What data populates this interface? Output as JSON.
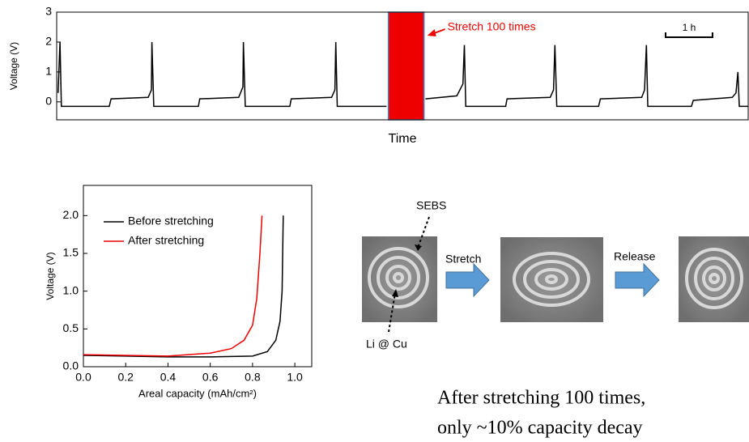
{
  "chart_data": [
    {
      "type": "line",
      "ylabel": "Voltage (V)",
      "xlabel": "Time",
      "color": "#000000",
      "x": [
        0.03,
        0.07,
        0.1,
        1.12,
        1.16,
        1.95,
        2.02,
        2.03,
        2.07,
        3.02,
        3.05,
        3.88,
        3.97,
        3.98,
        4.02,
        4.97,
        5.0,
        5.86,
        5.93,
        5.95,
        5.98,
        7.03,
        7.45,
        7.86,
        8.53,
        8.66,
        8.69,
        8.72,
        9.57,
        9.6,
        10.52,
        10.59,
        10.62,
        10.66,
        11.55,
        11.59,
        12.47,
        12.53,
        12.57,
        12.6,
        13.53,
        13.57,
        14.4,
        14.48,
        14.52,
        14.55,
        14.74
      ],
      "values": [
        0.3,
        2.0,
        -0.15,
        -0.15,
        0.1,
        0.15,
        0.4,
        2.0,
        -0.15,
        -0.15,
        0.1,
        0.15,
        0.5,
        2.0,
        -0.15,
        -0.15,
        0.1,
        0.15,
        0.4,
        2.0,
        -0.15,
        -0.15,
        null,
        0.1,
        0.2,
        0.6,
        1.9,
        -0.15,
        -0.15,
        0.1,
        0.15,
        0.4,
        1.9,
        -0.15,
        -0.15,
        0.1,
        0.15,
        0.4,
        1.9,
        -0.15,
        -0.15,
        0.05,
        0.15,
        0.3,
        1.0,
        -0.15,
        -0.15
      ],
      "xlim": [
        0,
        14.74
      ],
      "ylim": [
        -0.6,
        3
      ],
      "yticks": [
        0,
        1,
        2,
        3
      ],
      "highlight": {
        "x": [
          7.07,
          7.83
        ],
        "color": "#ee0000",
        "label": "Stretch 100 times"
      },
      "scale_bar": {
        "length": 1,
        "label": "1 h"
      }
    },
    {
      "type": "line",
      "xlabel": "Areal capacity (mAh/cm²)",
      "ylabel": "Voltage (V)",
      "legend": "upper left",
      "xlim": [
        0,
        1.08
      ],
      "ylim": [
        0,
        2.4
      ],
      "xticks": [
        {
          "value": 0,
          "label": "0.0"
        },
        {
          "value": 0.2,
          "label": "0.2"
        },
        {
          "value": 0.4,
          "label": "0.4"
        },
        {
          "value": 0.6,
          "label": "0.6"
        },
        {
          "value": 0.8,
          "label": "0.8"
        },
        {
          "value": 1.0,
          "label": "1.0"
        }
      ],
      "yticks": [
        {
          "value": 0,
          "label": "0.0"
        },
        {
          "value": 0.5,
          "label": "0.5"
        },
        {
          "value": 1.0,
          "label": "1.0"
        },
        {
          "value": 1.5,
          "label": "1.5"
        },
        {
          "value": 2.0,
          "label": "2.0"
        }
      ],
      "series": [
        {
          "name": "Before stretching",
          "color": "#000000",
          "x": [
            0,
            0.2,
            0.4,
            0.6,
            0.8,
            0.87,
            0.91,
            0.93,
            0.94,
            0.945
          ],
          "values": [
            0.15,
            0.14,
            0.13,
            0.13,
            0.14,
            0.2,
            0.35,
            0.6,
            1.0,
            2.0
          ]
        },
        {
          "name": "After stretching",
          "color": "#ee0000",
          "x": [
            0,
            0.2,
            0.4,
            0.6,
            0.7,
            0.76,
            0.8,
            0.82,
            0.835,
            0.845
          ],
          "values": [
            0.16,
            0.15,
            0.14,
            0.18,
            0.24,
            0.35,
            0.55,
            0.9,
            1.5,
            2.0
          ]
        }
      ]
    }
  ],
  "photos": {
    "top_label": "SEBS",
    "bottom_label": "Li @ Cu",
    "step1": "Stretch",
    "step2": "Release"
  },
  "caption": [
    "After stretching  100 times,",
    "only ~10% capacity  decay"
  ]
}
